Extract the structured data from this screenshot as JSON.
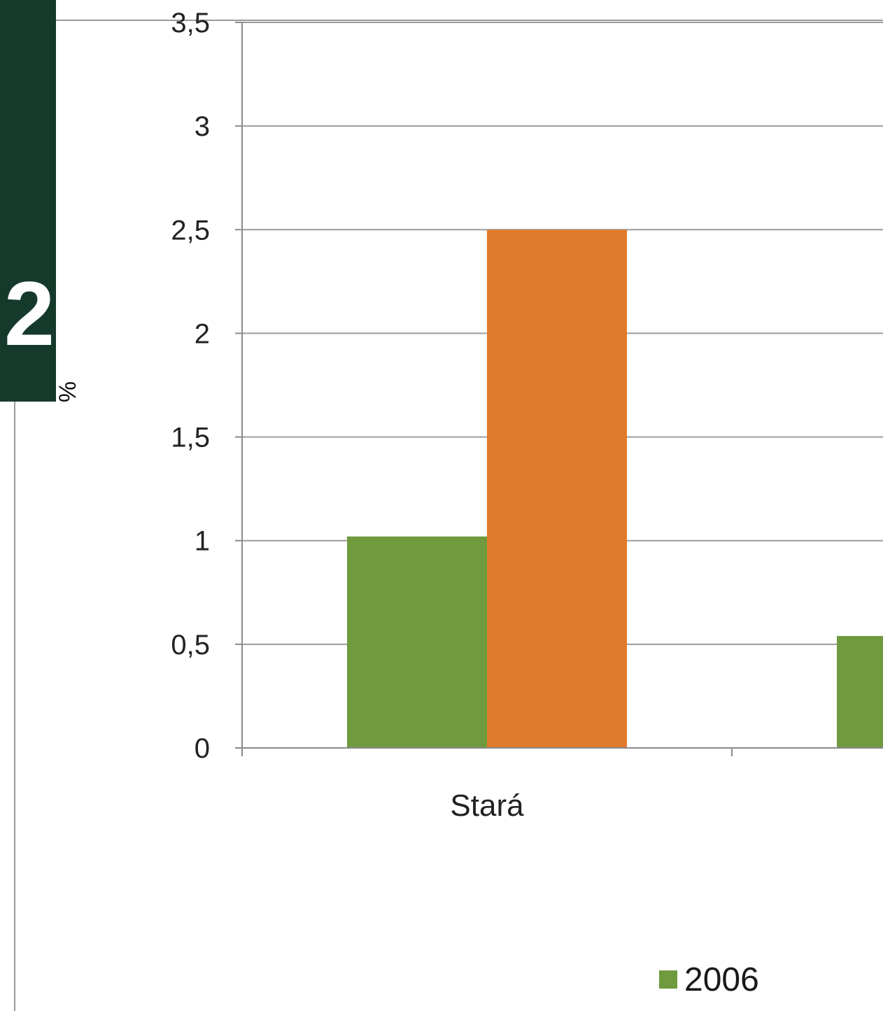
{
  "chapter": {
    "number": "2",
    "tab_color": "#153a2c"
  },
  "chart_data": {
    "type": "bar",
    "ylabel": "%",
    "ylim": [
      0,
      3.5
    ],
    "yticks": [
      "0",
      "0,5",
      "1",
      "1,5",
      "2",
      "2,5",
      "3",
      "3,5"
    ],
    "grid": true,
    "categories": [
      "Stará",
      ""
    ],
    "series": [
      {
        "name": "2006",
        "color": "#6f9a3e",
        "values": [
          1.02,
          0.54
        ]
      },
      {
        "color": "#e07a2c",
        "values": [
          2.5,
          null
        ]
      }
    ],
    "legend": {
      "position": "bottom",
      "entries": [
        {
          "label": "2006",
          "color": "#6f9a3e"
        }
      ]
    }
  }
}
